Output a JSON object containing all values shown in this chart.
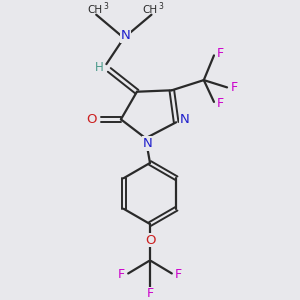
{
  "bg_color": "#e8e8ec",
  "bond_color": "#2a2a2a",
  "N_color": "#2020cc",
  "O_color": "#cc2020",
  "F_color": "#cc00cc",
  "H_color": "#4a9a8a",
  "C_color": "#2a2a2a",
  "figsize": [
    3.0,
    3.0
  ],
  "dpi": 100,
  "xlim": [
    0,
    10
  ],
  "ylim": [
    0,
    10
  ]
}
